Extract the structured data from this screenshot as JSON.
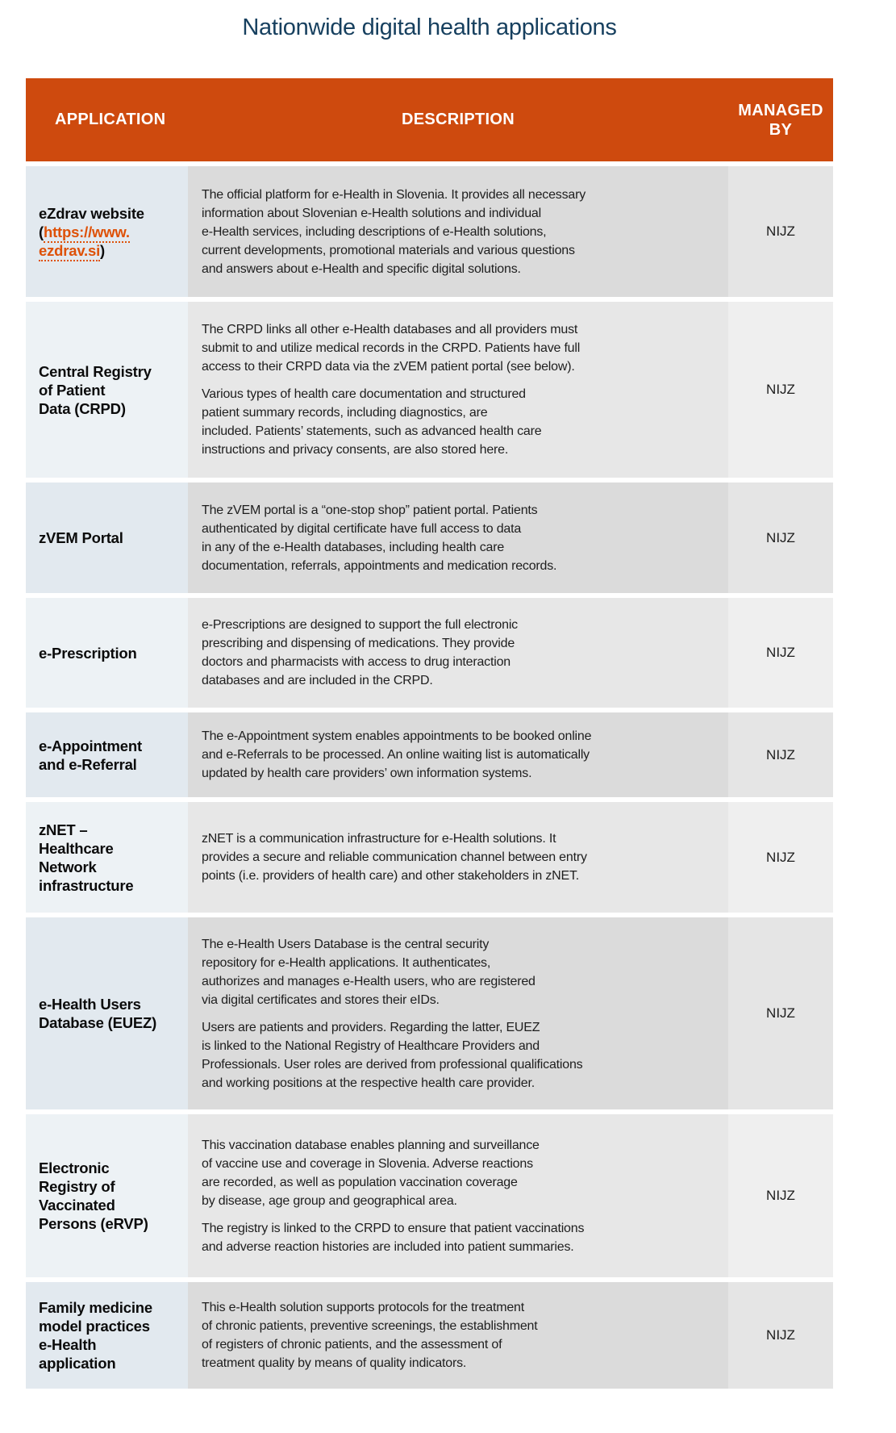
{
  "title": "Nationwide digital health applications",
  "colors": {
    "header_bg": "#CE4A0E",
    "title_text": "#17405F",
    "link_orange": "#DE5107",
    "app_cell_dark": "#E2E9EF",
    "app_cell_light": "#EDF2F5",
    "desc_cell_dark": "#DBDBDB",
    "desc_cell_light": "#E7E7E7"
  },
  "header": {
    "application": "APPLICATION",
    "description": "DESCRIPTION",
    "managed_by": "MANAGED\nBY"
  },
  "rows": [
    {
      "app": "eZdrav website",
      "link": {
        "open": "(",
        "line1": "https://www.",
        "line2": "ezdrav.si",
        "close": ")"
      },
      "paras": [
        "The official platform for e-Health in Slovenia. It provides all necessary\ninformation about Slovenian e-Health solutions and individual\ne-Health services, including descriptions of e-Health solutions,\ncurrent developments, promotional materials and various questions\nand answers about e-Health and specific digital solutions."
      ],
      "managed": "NIJZ"
    },
    {
      "app": "Central Registry\nof Patient\nData (CRPD)",
      "paras": [
        "The CRPD links all other e-Health databases and all providers must\nsubmit to and utilize medical records in the CRPD. Patients have full\naccess to their CRPD data via the zVEM patient portal (see below).",
        "Various types of health care documentation and structured\npatient summary records, including diagnostics, are\nincluded. Patients’ statements, such as advanced health care\ninstructions and privacy consents, are also stored here."
      ],
      "managed": "NIJZ"
    },
    {
      "app": "zVEM Portal",
      "paras": [
        "The zVEM portal is a “one-stop shop” patient portal. Patients\nauthenticated by digital certificate have full access to data\nin any of the e-Health databases, including health care\ndocumentation, referrals, appointments and medication records."
      ],
      "managed": "NIJZ"
    },
    {
      "app": "e-Prescription",
      "paras": [
        "e-Prescriptions are designed to support the full electronic\nprescribing and dispensing of medications. They provide\ndoctors and pharmacists with access to drug interaction\ndatabases and are included in the CRPD."
      ],
      "managed": "NIJZ"
    },
    {
      "app": "e-Appointment\nand e-Referral",
      "paras": [
        "The e-Appointment system enables appointments to be booked online\nand e-Referrals to be processed. An online waiting list is automatically\nupdated by health care providers’ own information systems."
      ],
      "managed": "NIJZ"
    },
    {
      "app": "zNET –\nHealthcare\nNetwork\ninfrastructure",
      "paras": [
        "zNET is a communication infrastructure for e-Health solutions. It\nprovides a secure and reliable communication channel between entry\npoints (i.e. providers of health care) and other stakeholders in zNET."
      ],
      "managed": "NIJZ"
    },
    {
      "app": "e-Health Users\nDatabase (EUEZ)",
      "paras": [
        "The e-Health Users Database is the central security\nrepository for e-Health applications. It authenticates,\nauthorizes and manages e-Health users, who are registered\nvia digital certificates and stores their eIDs.",
        "Users are patients and providers. Regarding the latter, EUEZ\nis linked to the National Registry of Healthcare Providers and\nProfessionals. User roles are derived from professional qualifications\nand working positions at the respective health care provider."
      ],
      "managed": "NIJZ"
    },
    {
      "app": "Electronic\nRegistry of\nVaccinated\nPersons (eRVP)",
      "paras": [
        "This vaccination database enables planning and surveillance\nof vaccine use and coverage in Slovenia. Adverse reactions\nare recorded, as well as population vaccination coverage\nby disease, age group and geographical area.",
        "The registry is linked to the CRPD to ensure that patient vaccinations\nand adverse reaction histories are included into patient summaries."
      ],
      "managed": "NIJZ"
    },
    {
      "app": "Family medicine\nmodel practices\ne-Health\napplication",
      "paras": [
        "This e-Health solution supports protocols for the treatment\nof chronic patients, preventive screenings, the establishment\nof registers of chronic patients, and the assessment of\ntreatment quality by means of quality indicators."
      ],
      "managed": "NIJZ"
    }
  ]
}
